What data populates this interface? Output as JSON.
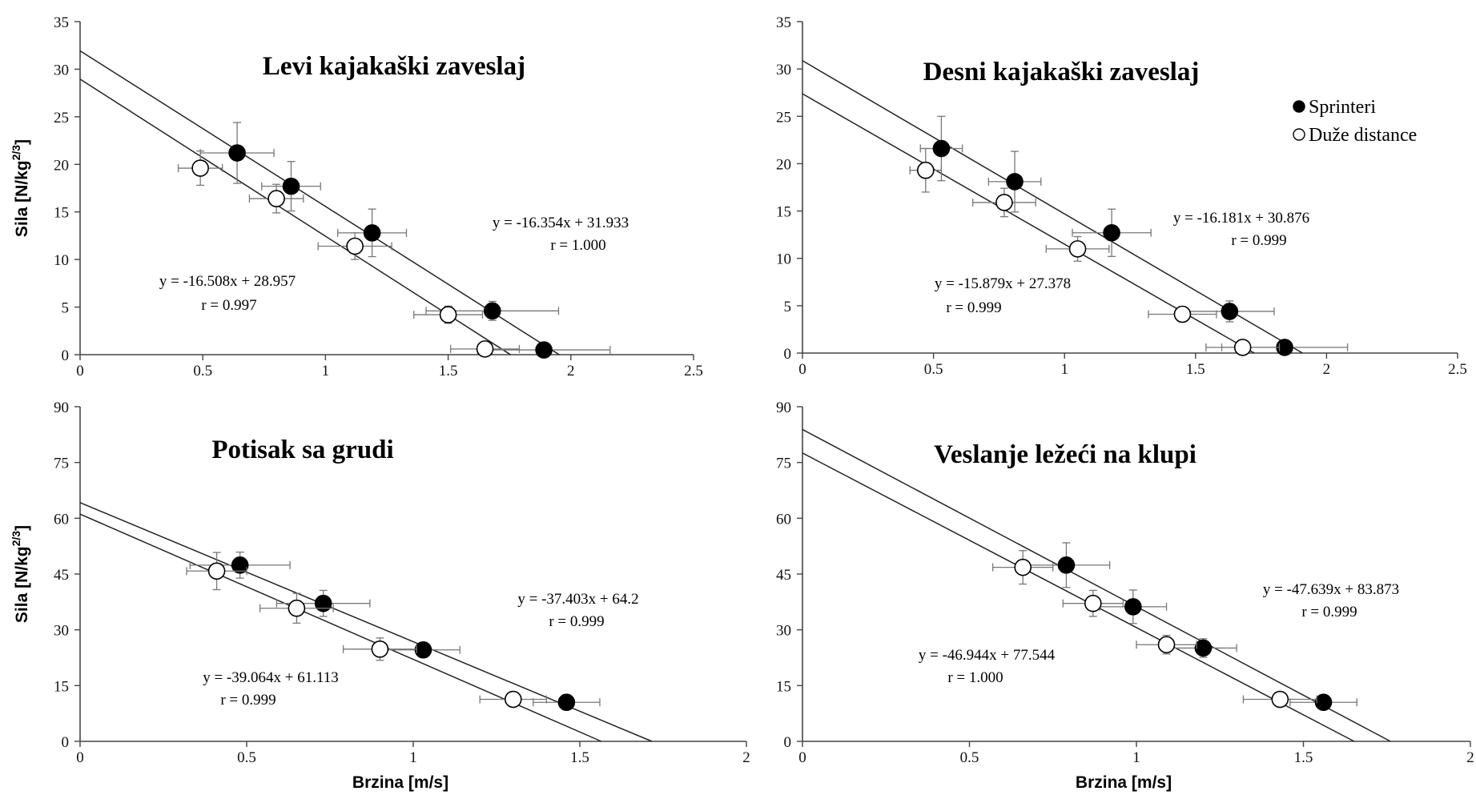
{
  "legend": {
    "filled": "Sprinteri",
    "open": "Duže distance"
  },
  "chart_data": [
    {
      "type": "scatter",
      "title": "Levi kajakaški zaveslaj",
      "xlabel": "",
      "ylabel": "Sila [N/kg",
      "ylabel_sup": "2/3",
      "ylabel_end": "]",
      "xlim": [
        0,
        2.5
      ],
      "ylim": [
        0,
        35
      ],
      "xticks": [
        "0",
        "0.5",
        "1",
        "1.5",
        "2",
        "2.5"
      ],
      "yticks": [
        "0",
        "5",
        "10",
        "15",
        "20",
        "25",
        "30",
        "35"
      ],
      "series": [
        {
          "name": "Sprinteri",
          "x": [
            0.64,
            0.86,
            1.19,
            1.68,
            1.89
          ],
          "y": [
            21.2,
            17.7,
            12.8,
            4.6,
            0.5
          ],
          "xerr": [
            0.15,
            0.12,
            0.14,
            0.27,
            0.27
          ],
          "yerr": [
            3.2,
            2.6,
            2.5,
            1.0,
            0.4
          ],
          "fit": {
            "slope": -16.354,
            "intercept": 31.933
          },
          "equation": "y = -16.354x  + 31.933",
          "r": "r = 1.000"
        },
        {
          "name": "Duže distance",
          "x": [
            0.49,
            0.8,
            1.12,
            1.5,
            1.65
          ],
          "y": [
            19.6,
            16.4,
            11.4,
            4.2,
            0.6
          ],
          "xerr": [
            0.09,
            0.11,
            0.15,
            0.14,
            0.14
          ],
          "yerr": [
            1.8,
            1.5,
            1.4,
            0.9,
            0.5
          ],
          "fit": {
            "slope": -16.508,
            "intercept": 28.957
          },
          "equation": "y = -16.508x  + 28.957",
          "r": "r = 0.997"
        }
      ]
    },
    {
      "type": "scatter",
      "title": "Desni kajakaški zaveslaj",
      "xlabel": "",
      "ylabel": "",
      "ylabel_sup": "",
      "ylabel_end": "",
      "xlim": [
        0,
        2.5
      ],
      "ylim": [
        0,
        35
      ],
      "xticks": [
        "0",
        "0.5",
        "1",
        "1.5",
        "2",
        "2.5"
      ],
      "yticks": [
        "0",
        "5",
        "10",
        "15",
        "20",
        "25",
        "30",
        "35"
      ],
      "series": [
        {
          "name": "Sprinteri",
          "x": [
            0.53,
            0.81,
            1.18,
            1.63,
            1.84
          ],
          "y": [
            21.6,
            18.1,
            12.7,
            4.4,
            0.6
          ],
          "xerr": [
            0.08,
            0.1,
            0.15,
            0.17,
            0.24
          ],
          "yerr": [
            3.4,
            3.2,
            2.5,
            1.1,
            0.5
          ],
          "fit": {
            "slope": -16.181,
            "intercept": 30.876
          },
          "equation": "y = -16.181x  + 30.876",
          "r": "r = 0.999"
        },
        {
          "name": "Duže distance",
          "x": [
            0.47,
            0.77,
            1.05,
            1.45,
            1.68
          ],
          "y": [
            19.3,
            15.9,
            11.0,
            4.1,
            0.6
          ],
          "xerr": [
            0.06,
            0.12,
            0.12,
            0.13,
            0.14
          ],
          "yerr": [
            2.3,
            1.5,
            1.3,
            0.8,
            0.5
          ],
          "fit": {
            "slope": -15.879,
            "intercept": 27.378
          },
          "equation": "y = -15.879x  + 27.378",
          "r": "r = 0.999"
        }
      ]
    },
    {
      "type": "scatter",
      "title": "Potisak sa grudi",
      "xlabel": "Brzina [m/s]",
      "ylabel": "Sila [N/kg",
      "ylabel_sup": "2/3",
      "ylabel_end": "]",
      "xlim": [
        0,
        2
      ],
      "ylim": [
        0,
        90
      ],
      "xticks": [
        "0",
        "0.5",
        "1",
        "1.5",
        "2"
      ],
      "yticks": [
        "0",
        "15",
        "30",
        "45",
        "60",
        "75",
        "90"
      ],
      "series": [
        {
          "name": "Sprinteri",
          "x": [
            0.48,
            0.73,
            1.03,
            1.46
          ],
          "y": [
            47.4,
            37.1,
            24.6,
            10.5
          ],
          "xerr": [
            0.15,
            0.14,
            0.11,
            0.1
          ],
          "yerr": [
            3.5,
            3.5,
            2.0,
            1.5
          ],
          "fit": {
            "slope": -37.403,
            "intercept": 64.2
          },
          "equation": "y = -37.403x  + 64.2",
          "r": "r = 0.999"
        },
        {
          "name": "Duže distance",
          "x": [
            0.41,
            0.65,
            0.9,
            1.3
          ],
          "y": [
            45.8,
            35.8,
            24.8,
            11.3
          ],
          "xerr": [
            0.09,
            0.11,
            0.11,
            0.1
          ],
          "yerr": [
            5.0,
            4.0,
            3.0,
            1.5
          ],
          "fit": {
            "slope": -39.064,
            "intercept": 61.113
          },
          "equation": "y = -39.064x  + 61.113",
          "r": "r = 0.999"
        }
      ]
    },
    {
      "type": "scatter",
      "title": "Veslanje ležeći na klupi",
      "xlabel": "Brzina [m/s]",
      "ylabel": "",
      "ylabel_sup": "",
      "ylabel_end": "",
      "xlim": [
        0,
        2
      ],
      "ylim": [
        0,
        90
      ],
      "xticks": [
        "0",
        "0.5",
        "1",
        "1.5",
        "2"
      ],
      "yticks": [
        "0",
        "15",
        "30",
        "45",
        "60",
        "75",
        "90"
      ],
      "series": [
        {
          "name": "Sprinteri",
          "x": [
            0.79,
            0.99,
            1.2,
            1.56
          ],
          "y": [
            47.4,
            36.2,
            25.1,
            10.5
          ],
          "xerr": [
            0.13,
            0.1,
            0.1,
            0.1
          ],
          "yerr": [
            6.0,
            4.5,
            2.5,
            1.5
          ],
          "fit": {
            "slope": -47.639,
            "intercept": 83.873
          },
          "equation": "y = -47.639x  + 83.873",
          "r": "r = 0.999"
        },
        {
          "name": "Duže distance",
          "x": [
            0.66,
            0.87,
            1.09,
            1.43
          ],
          "y": [
            46.8,
            37.1,
            26.0,
            11.3
          ],
          "xerr": [
            0.09,
            0.09,
            0.09,
            0.11
          ],
          "yerr": [
            4.5,
            3.5,
            2.5,
            1.5
          ],
          "fit": {
            "slope": -46.944,
            "intercept": 77.544
          },
          "equation": "y = -46.944x  + 77.544",
          "r": "r = 1.000"
        }
      ]
    }
  ]
}
